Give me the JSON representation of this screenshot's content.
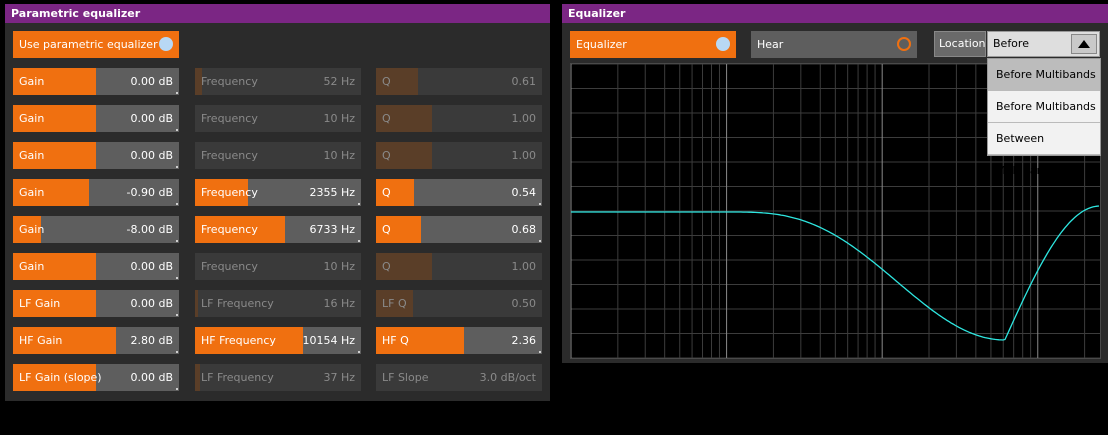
{
  "left_panel": {
    "title": "Parametric equalizer",
    "use_toggle": {
      "label": "Use parametric equalizer",
      "on": true
    },
    "rows": [
      {
        "gain": {
          "label": "Gain",
          "value": "0.00 dB",
          "fill": 0.5,
          "active": true
        },
        "freq": {
          "label": "Frequency",
          "value": "52 Hz",
          "fill": 0.04,
          "active": false
        },
        "q": {
          "label": "Q",
          "value": "0.61",
          "fill": 0.25,
          "active": false
        }
      },
      {
        "gain": {
          "label": "Gain",
          "value": "0.00 dB",
          "fill": 0.5,
          "active": true
        },
        "freq": {
          "label": "Frequency",
          "value": "10 Hz",
          "fill": 0.0,
          "active": false
        },
        "q": {
          "label": "Q",
          "value": "1.00",
          "fill": 0.34,
          "active": false
        }
      },
      {
        "gain": {
          "label": "Gain",
          "value": "0.00 dB",
          "fill": 0.5,
          "active": true
        },
        "freq": {
          "label": "Frequency",
          "value": "10 Hz",
          "fill": 0.0,
          "active": false
        },
        "q": {
          "label": "Q",
          "value": "1.00",
          "fill": 0.34,
          "active": false
        }
      },
      {
        "gain": {
          "label": "Gain",
          "value": "-0.90 dB",
          "fill": 0.46,
          "active": true
        },
        "freq": {
          "label": "Frequency",
          "value": "2355 Hz",
          "fill": 0.32,
          "active": true
        },
        "q": {
          "label": "Q",
          "value": "0.54",
          "fill": 0.23,
          "active": true
        }
      },
      {
        "gain": {
          "label": "Gain",
          "value": "-8.00 dB",
          "fill": 0.17,
          "active": true
        },
        "freq": {
          "label": "Frequency",
          "value": "6733 Hz",
          "fill": 0.54,
          "active": true
        },
        "q": {
          "label": "Q",
          "value": "0.68",
          "fill": 0.27,
          "active": true
        }
      },
      {
        "gain": {
          "label": "Gain",
          "value": "0.00 dB",
          "fill": 0.5,
          "active": true
        },
        "freq": {
          "label": "Frequency",
          "value": "10 Hz",
          "fill": 0.0,
          "active": false
        },
        "q": {
          "label": "Q",
          "value": "1.00",
          "fill": 0.34,
          "active": false
        }
      },
      {
        "gain": {
          "label": "LF Gain",
          "value": "0.00 dB",
          "fill": 0.5,
          "active": true
        },
        "freq": {
          "label": "LF Frequency",
          "value": "16 Hz",
          "fill": 0.02,
          "active": false
        },
        "q": {
          "label": "LF Q",
          "value": "0.50",
          "fill": 0.22,
          "active": false
        }
      },
      {
        "gain": {
          "label": "HF Gain",
          "value": "2.80 dB",
          "fill": 0.62,
          "active": true
        },
        "freq": {
          "label": "HF Frequency",
          "value": "10154 Hz",
          "fill": 0.65,
          "active": true
        },
        "q": {
          "label": "HF Q",
          "value": "2.36",
          "fill": 0.53,
          "active": true
        }
      },
      {
        "gain": {
          "label": "LF Gain (slope)",
          "value": "0.00 dB",
          "fill": 0.5,
          "active": true
        },
        "freq": {
          "label": "LF Frequency",
          "value": "37 Hz",
          "fill": 0.03,
          "active": false
        },
        "q": {
          "label": "LF Slope",
          "value": "3.0 dB/oct",
          "fill": 0.0,
          "active": false
        }
      }
    ]
  },
  "right_panel": {
    "title": "Equalizer",
    "equalizer_toggle": {
      "label": "Equalizer",
      "on": true
    },
    "hear_toggle": {
      "label": "Hear",
      "on": false
    },
    "location": {
      "label": "Location",
      "selected": "Before",
      "options": [
        "Before Multibands",
        "Before Multibands",
        "Between Multibands"
      ],
      "highlighted_index": 0
    },
    "curve_color": "#2ee6e0"
  },
  "colors": {
    "accent": "#f07010",
    "title_bar": "#7b2684"
  }
}
